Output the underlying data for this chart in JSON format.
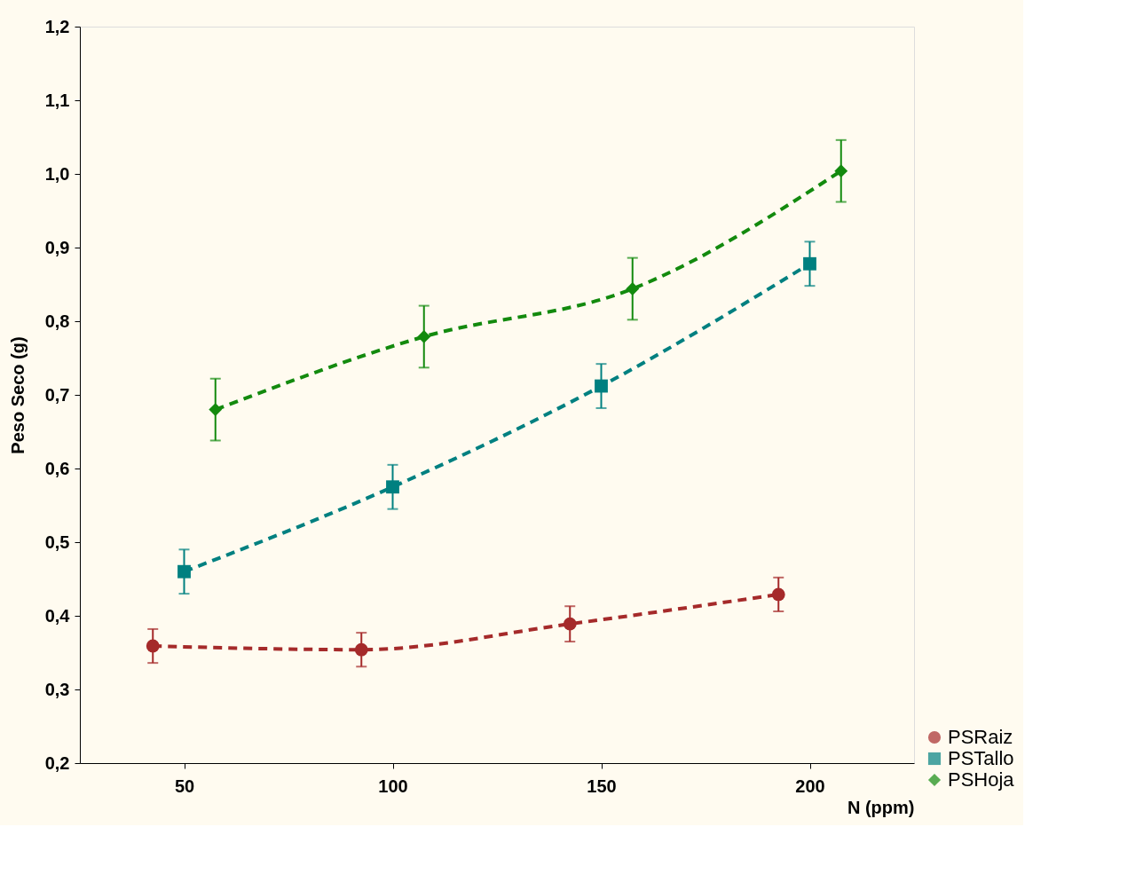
{
  "chart_data": {
    "type": "line",
    "xlabel": "N (ppm)",
    "ylabel": "Peso Seco (g)",
    "xlim": [
      25,
      225
    ],
    "xticks": [
      50,
      100,
      150,
      200
    ],
    "ylim": [
      0.2,
      1.2
    ],
    "yticks": [
      {
        "value": 0.2,
        "label": "0,2"
      },
      {
        "value": 0.3,
        "label": "0,3"
      },
      {
        "value": 0.4,
        "label": "0,4"
      },
      {
        "value": 0.5,
        "label": "0,5"
      },
      {
        "value": 0.6,
        "label": "0,6"
      },
      {
        "value": 0.7,
        "label": "0,7"
      },
      {
        "value": 0.8,
        "label": "0,8"
      },
      {
        "value": 0.9,
        "label": "0,9"
      },
      {
        "value": 1.0,
        "label": "1,0"
      },
      {
        "value": 1.1,
        "label": "1,1"
      },
      {
        "value": 1.2,
        "label": "1,2"
      }
    ],
    "grid": false,
    "legend": "bottom right",
    "line_style": "dashed",
    "series": [
      {
        "name": "PSRaiz",
        "color": "#a52a2a",
        "marker": "circle",
        "x": [
          42.5,
          92.5,
          142.5,
          192.5
        ],
        "values": [
          0.359,
          0.354,
          0.389,
          0.429
        ],
        "errors": [
          0.023,
          0.023,
          0.024,
          0.023
        ]
      },
      {
        "name": "PSTallo",
        "color": "#008080",
        "marker": "square",
        "x": [
          50,
          100,
          150,
          200
        ],
        "values": [
          0.46,
          0.575,
          0.712,
          0.878
        ],
        "errors": [
          0.03,
          0.03,
          0.03,
          0.03
        ]
      },
      {
        "name": "PSHoja",
        "color": "#138a0e",
        "marker": "diamond",
        "x": [
          57.5,
          107.5,
          157.5,
          207.5
        ],
        "values": [
          0.68,
          0.779,
          0.844,
          1.004
        ],
        "errors": [
          0.042,
          0.042,
          0.042,
          0.042
        ]
      }
    ]
  }
}
